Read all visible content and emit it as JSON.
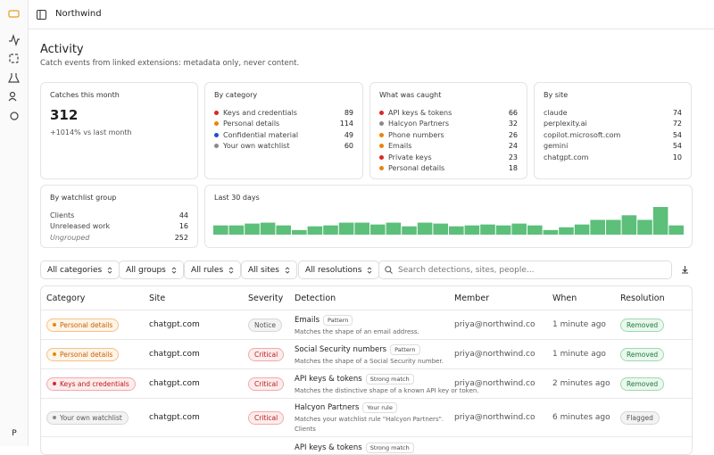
{
  "header": {
    "title": "Northwind"
  },
  "sidebar": {
    "avatar": "P"
  },
  "page": {
    "title": "Activity",
    "subtitle": "Catch events from linked extensions: metadata only, never content."
  },
  "stats": {
    "catches": {
      "label": "Catches this month",
      "value": 312,
      "change": "+1014% vs last month"
    },
    "by_category": {
      "title": "By category",
      "items": [
        {
          "label": "Keys and credentials",
          "count": 89,
          "color": "#dc2626"
        },
        {
          "label": "Personal details",
          "count": 114,
          "color": "#e8850c"
        },
        {
          "label": "Confidential material",
          "count": 49,
          "color": "#1d4ed8"
        },
        {
          "label": "Your own watchlist",
          "count": 60,
          "color": "#8a8a8a"
        }
      ]
    },
    "what_was_caught": {
      "title": "What was caught",
      "items": [
        {
          "label": "API keys & tokens",
          "count": 66,
          "color": "#dc2626"
        },
        {
          "label": "Halcyon Partners",
          "count": 32,
          "color": "#8a8a8a"
        },
        {
          "label": "Phone numbers",
          "count": 26,
          "color": "#e8850c"
        },
        {
          "label": "Emails",
          "count": 24,
          "color": "#e8850c"
        },
        {
          "label": "Private keys",
          "count": 23,
          "color": "#dc2626"
        },
        {
          "label": "Personal details",
          "count": 18,
          "color": "#e8850c"
        }
      ]
    },
    "by_site": {
      "title": "By site",
      "items": [
        {
          "label": "claude",
          "count": 74
        },
        {
          "label": "perplexity.ai",
          "count": 72
        },
        {
          "label": "copilot.microsoft.com",
          "count": 54
        },
        {
          "label": "gemini",
          "count": 54
        },
        {
          "label": "chatgpt.com",
          "count": 10
        }
      ]
    },
    "by_watchlist_group": {
      "title": "By watchlist group",
      "items": [
        {
          "label": "Clients",
          "count": 44
        },
        {
          "label": "Unreleased work",
          "count": 16
        },
        {
          "label": "Ungrouped",
          "count": 252,
          "italic": true
        }
      ]
    }
  },
  "last_30_days": {
    "type": "bar",
    "title": "Last 30 days",
    "color": "#5cbf7a",
    "values": [
      10,
      10,
      12,
      13,
      10,
      5,
      9,
      10,
      13,
      13,
      11,
      13,
      9,
      13,
      12,
      9,
      10,
      11,
      10,
      12,
      10,
      5,
      8,
      11,
      16,
      16,
      21,
      16,
      30,
      10
    ]
  },
  "filters": [
    "All categories",
    "All groups",
    "All rules",
    "All sites",
    "All resolutions"
  ],
  "search": {
    "placeholder": "Search detections, sites, people..."
  },
  "table": {
    "columns": [
      "Category",
      "Site",
      "Severity",
      "Detection",
      "Member",
      "When",
      "Resolution"
    ],
    "rows": [
      {
        "category": "Personal details",
        "category_tone": "orange",
        "site": "chatgpt.com",
        "severity": "Notice",
        "severity_tone": "gray",
        "detection": "Emails",
        "badge": "Pattern",
        "description": "Matches the shape of an email address.",
        "member": "priya@northwind.co",
        "when": "1 minute ago",
        "resolution": "Removed",
        "resolution_tone": "green"
      },
      {
        "category": "Personal details",
        "category_tone": "orange",
        "site": "chatgpt.com",
        "severity": "Critical",
        "severity_tone": "red",
        "detection": "Social Security numbers",
        "badge": "Pattern",
        "description": "Matches the shape of a Social Security number.",
        "member": "priya@northwind.co",
        "when": "1 minute ago",
        "resolution": "Removed",
        "resolution_tone": "green"
      },
      {
        "category": "Keys and credentials",
        "category_tone": "red",
        "site": "chatgpt.com",
        "severity": "Critical",
        "severity_tone": "red",
        "detection": "API keys & tokens",
        "badge": "Strong match",
        "description": "Matches the distinctive shape of a known API key or token.",
        "member": "priya@northwind.co",
        "when": "2 minutes ago",
        "resolution": "Removed",
        "resolution_tone": "green"
      },
      {
        "category": "Your own watchlist",
        "category_tone": "gray",
        "site": "chatgpt.com",
        "severity": "Critical",
        "severity_tone": "red",
        "detection": "Halcyon Partners",
        "badge": "Your rule",
        "description": "Matches your watchlist rule \"Halcyon Partners\".",
        "extra": "Clients",
        "member": "priya@northwind.co",
        "when": "6 minutes ago",
        "resolution": "Flagged",
        "resolution_tone": "gray"
      },
      {
        "detection": "API keys & tokens",
        "badge": "Strong match"
      }
    ]
  }
}
